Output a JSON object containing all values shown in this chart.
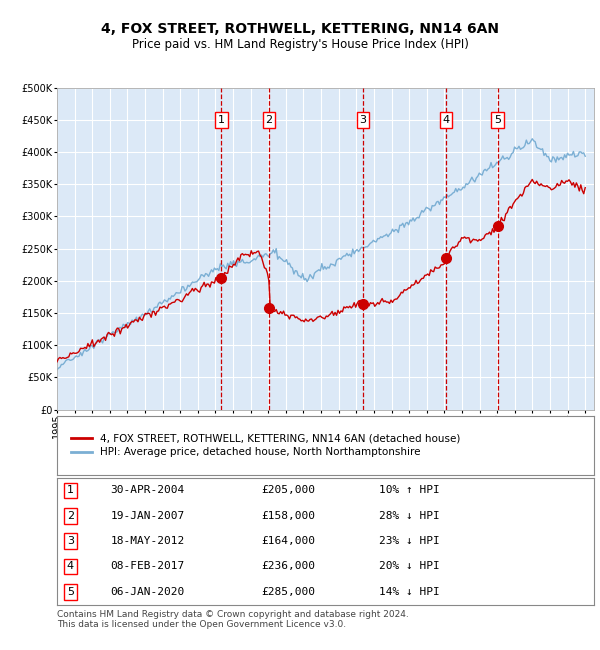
{
  "title": "4, FOX STREET, ROTHWELL, KETTERING, NN14 6AN",
  "subtitle": "Price paid vs. HM Land Registry's House Price Index (HPI)",
  "ylim": [
    0,
    500000
  ],
  "yticks": [
    0,
    50000,
    100000,
    150000,
    200000,
    250000,
    300000,
    350000,
    400000,
    450000,
    500000
  ],
  "xlim_start": 1995.0,
  "xlim_end": 2025.5,
  "background_color": "#dce9f7",
  "grid_color": "#ffffff",
  "red_line_color": "#cc0000",
  "blue_line_color": "#7bafd4",
  "sale_marker_color": "#cc0000",
  "vline_color": "#cc0000",
  "legend_label_red": "4, FOX STREET, ROTHWELL, KETTERING, NN14 6AN (detached house)",
  "legend_label_blue": "HPI: Average price, detached house, North Northamptonshire",
  "footer": "Contains HM Land Registry data © Crown copyright and database right 2024.\nThis data is licensed under the Open Government Licence v3.0.",
  "sales": [
    {
      "num": 1,
      "date_str": "30-APR-2004",
      "year": 2004.33,
      "price": 205000,
      "pct": "10%",
      "dir": "↑"
    },
    {
      "num": 2,
      "date_str": "19-JAN-2007",
      "year": 2007.05,
      "price": 158000,
      "pct": "28%",
      "dir": "↓"
    },
    {
      "num": 3,
      "date_str": "18-MAY-2012",
      "year": 2012.38,
      "price": 164000,
      "pct": "23%",
      "dir": "↓"
    },
    {
      "num": 4,
      "date_str": "08-FEB-2017",
      "year": 2017.1,
      "price": 236000,
      "pct": "20%",
      "dir": "↓"
    },
    {
      "num": 5,
      "date_str": "06-JAN-2020",
      "year": 2020.02,
      "price": 285000,
      "pct": "14%",
      "dir": "↓"
    }
  ]
}
